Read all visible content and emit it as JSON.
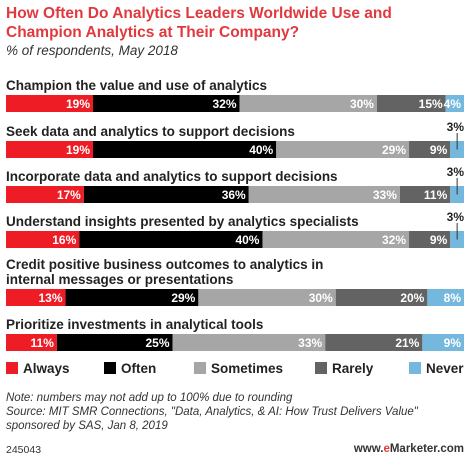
{
  "title": "How Often Do Analytics Leaders Worldwide Use and Champion Analytics at Their Company?",
  "subtitle": "% of respondents, May 2018",
  "chart_data": {
    "type": "bar",
    "orientation": "horizontal",
    "stacked": true,
    "legend_position": "bottom",
    "grid": false,
    "value_suffix": "%",
    "categories": [
      [
        "Champion the value and use of analytics"
      ],
      [
        "Seek data and analytics to support decisions"
      ],
      [
        "Incorporate data and analytics to support decisions"
      ],
      [
        "Understand insights presented by analytics specialists"
      ],
      [
        "Credit positive business outcomes to analytics in",
        "internal messages or presentations"
      ],
      [
        "Prioritize investments in analytical tools"
      ]
    ],
    "series": [
      {
        "name": "Always",
        "color": "#ee1c25",
        "values": [
          19,
          19,
          17,
          16,
          13,
          11
        ]
      },
      {
        "name": "Often",
        "color": "#000000",
        "values": [
          32,
          40,
          36,
          40,
          29,
          25
        ]
      },
      {
        "name": "Sometimes",
        "color": "#a6a6a6",
        "values": [
          30,
          29,
          33,
          32,
          30,
          33
        ]
      },
      {
        "name": "Rarely",
        "color": "#636363",
        "values": [
          15,
          9,
          11,
          9,
          20,
          21
        ]
      },
      {
        "name": "Never",
        "color": "#75b8de",
        "values": [
          4,
          3,
          3,
          3,
          8,
          9
        ]
      }
    ]
  },
  "note": "Note: numbers may not add up to 100% due to rounding",
  "source": "Source: MIT SMR Connections, \"Data, Analytics, & AI: How Trust Delivers Value\" sponsored by SAS, Jan 8, 2019",
  "chart_id": "245043",
  "brand": {
    "prefix": "www.",
    "e": "e",
    "rest": "Marketer.com"
  }
}
